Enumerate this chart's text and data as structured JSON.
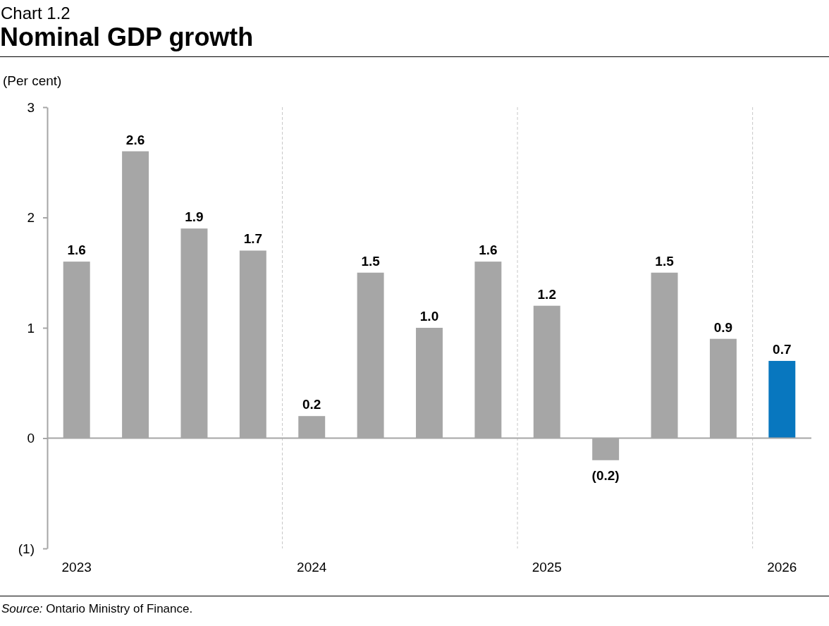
{
  "chart_data": {
    "type": "bar",
    "title": "Nominal GDP growth",
    "ylabel": "(Per cent)",
    "categories": [
      "2023",
      null,
      null,
      null,
      "2024",
      null,
      null,
      null,
      "2025",
      null,
      null,
      null,
      "2026"
    ],
    "values": [
      1.6,
      2.6,
      1.9,
      1.7,
      0.2,
      1.5,
      1.0,
      1.6,
      1.2,
      -0.2,
      1.5,
      0.9,
      0.7
    ],
    "colors": [
      "#a6a6a6",
      "#a6a6a6",
      "#a6a6a6",
      "#a6a6a6",
      "#a6a6a6",
      "#a6a6a6",
      "#a6a6a6",
      "#a6a6a6",
      "#a6a6a6",
      "#a6a6a6",
      "#a6a6a6",
      "#a6a6a6",
      "#0877bf"
    ],
    "value_labels": [
      "1.6",
      "2.6",
      "1.9",
      "1.7",
      "0.2",
      "1.5",
      "1.0",
      "1.6",
      "1.2",
      "(0.2)",
      "1.5",
      "0.9",
      "0.7"
    ],
    "ylim": [
      -1,
      3
    ],
    "yticks": [
      {
        "value": -1,
        "label": "(1)"
      },
      0,
      1,
      2,
      3
    ],
    "grid": "x",
    "annotations": [
      "Chart 1.2",
      "Source: Ontario Ministry of Finance."
    ]
  }
}
